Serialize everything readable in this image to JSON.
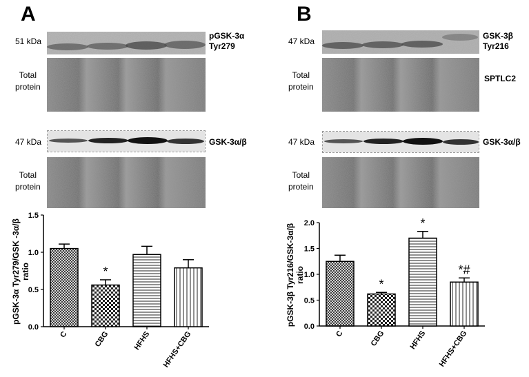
{
  "panel_a": {
    "letter": "A",
    "top_blot": {
      "kda": "51 kDa",
      "label_line1": "pGSK-3α",
      "label_line2": "Tyr279"
    },
    "top_total": {
      "line1": "Total",
      "line2": "protein"
    },
    "mid_blot": {
      "kda": "47 kDa",
      "label": "GSK-3α/β"
    },
    "mid_total": {
      "line1": "Total",
      "line2": "protein"
    }
  },
  "panel_b": {
    "letter": "B",
    "top_blot": {
      "kda": "47 kDa",
      "label_line1": "GSK-3β",
      "label_line2": "Tyr216"
    },
    "top_total": {
      "line1": "Total",
      "line2": "protein",
      "label": "SPTLC2"
    },
    "mid_blot": {
      "kda": "47 kDa",
      "label": "GSK-3α/β"
    },
    "mid_total": {
      "line1": "Total",
      "line2": "protein"
    }
  },
  "chart_data": [
    {
      "type": "bar",
      "panel": "A",
      "categories": [
        "C",
        "CBG",
        "HFHS",
        "HFHS+CBG"
      ],
      "values": [
        1.05,
        0.56,
        0.97,
        0.79
      ],
      "errors": [
        0.06,
        0.07,
        0.11,
        0.11
      ],
      "annotations": [
        "",
        "*",
        "",
        ""
      ],
      "ylabel_line1": "pGSK-3α Tyr279/GSK -3α/β",
      "ylabel_line2": "ratio",
      "ylim": [
        0,
        1.5
      ],
      "yticks": [
        "0.0",
        "0.5",
        "1.0",
        "1.5"
      ],
      "patterns": [
        "crosshatch-dense",
        "checker",
        "horizontal",
        "vertical"
      ]
    },
    {
      "type": "bar",
      "panel": "B",
      "categories": [
        "C",
        "CBG",
        "HFHS",
        "HFHS+CBG"
      ],
      "values": [
        1.25,
        0.62,
        1.7,
        0.85
      ],
      "errors": [
        0.12,
        0.03,
        0.13,
        0.08
      ],
      "annotations": [
        "",
        "*",
        "*",
        "*#"
      ],
      "ylabel_line1": "pGSK-3β Tyr216/GSK-3α/β",
      "ylabel_line2": "ratio",
      "ylim": [
        0,
        2.0
      ],
      "yticks": [
        "0.0",
        "0.5",
        "1.0",
        "1.5",
        "2.0"
      ],
      "patterns": [
        "crosshatch-dense",
        "checker",
        "horizontal",
        "vertical"
      ]
    }
  ]
}
